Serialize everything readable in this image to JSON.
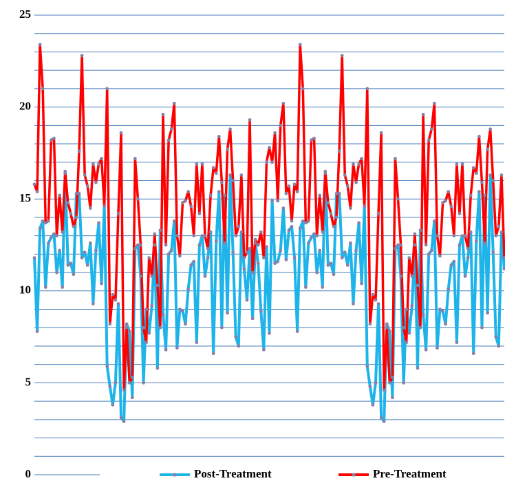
{
  "chart_data": {
    "type": "line",
    "ylim": [
      0,
      25
    ],
    "yticks": [
      0,
      5,
      10,
      15,
      20,
      25
    ],
    "minor_yticks": [
      1,
      2,
      3,
      4,
      6,
      7,
      8,
      9,
      11,
      12,
      13,
      14,
      16,
      17,
      18,
      19,
      21,
      22,
      23,
      24
    ],
    "grid": true,
    "grid_color": "#4a7ebb",
    "marker_color": "#8a7fa6",
    "legend": "bottom",
    "series": [
      {
        "name": "Post-Treatment",
        "color": "#1eb4ea",
        "values": [
          11.8,
          7.8,
          13.4,
          13.8,
          10.2,
          12.6,
          12.9,
          13.1,
          11,
          12.2,
          10.2,
          16.4,
          11.4,
          11.5,
          10.9,
          15.3,
          15.3,
          11.8,
          12.1,
          11.4,
          12.6,
          9.3,
          12.2,
          13.7,
          10.4,
          14.6,
          5.9,
          4.8,
          3.8,
          5,
          9.3,
          3.1,
          2.9,
          8.2,
          7.8,
          4.2,
          12.3,
          12.5,
          10.8,
          5,
          9,
          7.7,
          9.2,
          12.5,
          5.8,
          13.3,
          8.7,
          6.8,
          12,
          12.2,
          13.8,
          6.9,
          9,
          8.9,
          8.2,
          10.1,
          11.4,
          11.6,
          7.2,
          12.5,
          13,
          10.8,
          11.8,
          13.2,
          6.6,
          12.7,
          15.4,
          8,
          15.2,
          8.8,
          16.3,
          12.1,
          7.5,
          7,
          13.2,
          11.2,
          9.5,
          12.3,
          8.5,
          12.6,
          11.5,
          8.9,
          6.8,
          12.4,
          7.7,
          14.9,
          11.5,
          11.6,
          12.2,
          14.5,
          11.7,
          13.3,
          13.5,
          11.8,
          7.8,
          13.4,
          13.8,
          10.2,
          12.6,
          12.9,
          13.1,
          11,
          12.2,
          10.2,
          16.4,
          11.4,
          11.5,
          10.9,
          15.3,
          15.3,
          11.8,
          12.1,
          11.4,
          12.6,
          9.3,
          12.2,
          13.7,
          10.4,
          14.6,
          5.9,
          4.8,
          3.8,
          5,
          9.3,
          3.1,
          2.9,
          8.2,
          7.8,
          4.2,
          12.3,
          12.5,
          10.8,
          5,
          9,
          7.7,
          9.2,
          12.5,
          5.8,
          13.3,
          8.7,
          6.8,
          12,
          12.2,
          13.8,
          6.9,
          9,
          8.9,
          8.2,
          10.1,
          11.4,
          11.6,
          7.2,
          12.5,
          13,
          10.8,
          11.8,
          13.2,
          6.6,
          12.7,
          15.4,
          8,
          15.2,
          8.8,
          16.3,
          12.1,
          7.5,
          7,
          13.2,
          11.2
        ]
      },
      {
        "name": "Pre-Treatment",
        "color": "#ff0000",
        "values": [
          15.8,
          15.4,
          23.4,
          21,
          13.7,
          13.8,
          18.2,
          18.3,
          13,
          15.2,
          13.2,
          16.5,
          14.8,
          14.2,
          13.5,
          14,
          17.6,
          22.8,
          16.3,
          15.7,
          14.5,
          16.9,
          15.9,
          16.9,
          17.2,
          14.6,
          21,
          8.2,
          9.8,
          9.5,
          14.2,
          18.6,
          4.6,
          8,
          5,
          5.3,
          17.2,
          15,
          12.5,
          8,
          7.2,
          11.8,
          10.8,
          13.1,
          10.3,
          8,
          19.6,
          12.5,
          18.2,
          18.8,
          20.2,
          13,
          11.9,
          14.8,
          14.9,
          15.4,
          14.6,
          13,
          16.9,
          14.2,
          16.9,
          13,
          12.3,
          15.2,
          16.7,
          16.4,
          18.4,
          15.9,
          12.6,
          17.7,
          18.8,
          16,
          13,
          13.5,
          16.3,
          11.8,
          12.1,
          19.3,
          11,
          12.8,
          12.5,
          13.2,
          11.8,
          17,
          17.8,
          17,
          18.6,
          14.9,
          19,
          20.2,
          15.3,
          15.7,
          13.8,
          15.8,
          15.4,
          23.4,
          21,
          13.7,
          13.8,
          18.2,
          18.3,
          13,
          15.2,
          13.2,
          16.5,
          14.8,
          14.2,
          13.5,
          14,
          17.6,
          22.8,
          16.3,
          15.7,
          14.5,
          16.9,
          15.9,
          16.9,
          17.2,
          14.6,
          21,
          8.2,
          9.8,
          9.5,
          14.2,
          18.6,
          4.6,
          8,
          5,
          5.3,
          17.2,
          15,
          12.5,
          8,
          7.2,
          11.8,
          10.8,
          13.1,
          10.3,
          8,
          19.6,
          12.5,
          18.2,
          18.8,
          20.2,
          13,
          11.9,
          14.8,
          14.9,
          15.4,
          14.6,
          13,
          16.9,
          14.2,
          16.9,
          13,
          12.3,
          15.2,
          16.7,
          16.4,
          18.4,
          15.9,
          12.6,
          17.7,
          18.8,
          16,
          13,
          13.5,
          16.3,
          11.8
        ]
      }
    ]
  }
}
